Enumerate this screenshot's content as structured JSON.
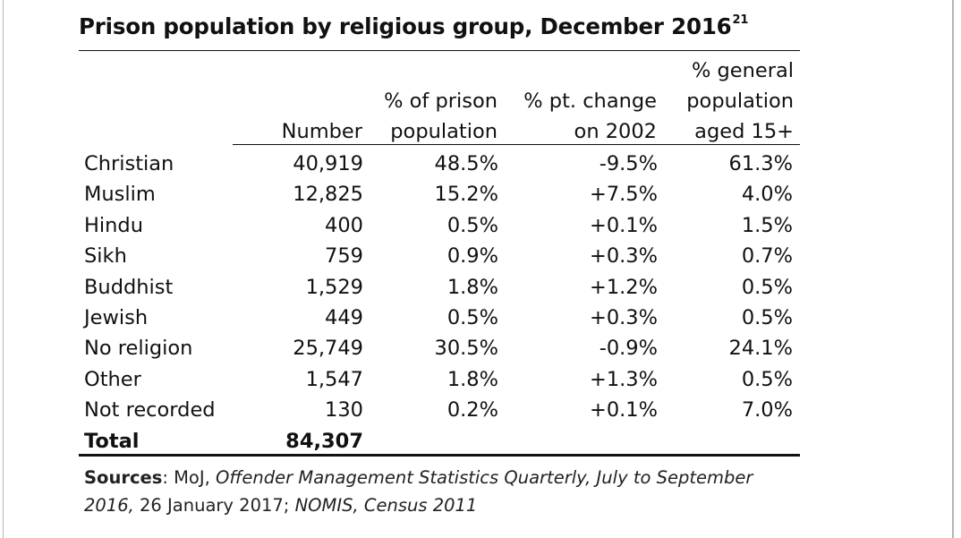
{
  "title": "Prison population by religious group, December 2016",
  "title_footnote": "21",
  "table": {
    "columns": [
      {
        "key": "number",
        "lines": [
          "Number"
        ]
      },
      {
        "key": "pct_prison",
        "lines": [
          "% of prison",
          "population"
        ]
      },
      {
        "key": "pt_change",
        "lines": [
          "% pt. change",
          "on 2002"
        ]
      },
      {
        "key": "pct_general",
        "lines": [
          "% general",
          "population",
          "aged 15+"
        ]
      }
    ],
    "rows": [
      {
        "label": "Christian",
        "number": "40,919",
        "pct_prison": "48.5%",
        "pt_change": "-9.5%",
        "pct_general": "61.3%"
      },
      {
        "label": "Muslim",
        "number": "12,825",
        "pct_prison": "15.2%",
        "pt_change": "+7.5%",
        "pct_general": "4.0%"
      },
      {
        "label": "Hindu",
        "number": "400",
        "pct_prison": "0.5%",
        "pt_change": "+0.1%",
        "pct_general": "1.5%"
      },
      {
        "label": "Sikh",
        "number": "759",
        "pct_prison": "0.9%",
        "pt_change": "+0.3%",
        "pct_general": "0.7%"
      },
      {
        "label": "Buddhist",
        "number": "1,529",
        "pct_prison": "1.8%",
        "pt_change": "+1.2%",
        "pct_general": "0.5%"
      },
      {
        "label": "Jewish",
        "number": "449",
        "pct_prison": "0.5%",
        "pt_change": "+0.3%",
        "pct_general": "0.5%"
      },
      {
        "label": "No religion",
        "number": "25,749",
        "pct_prison": "30.5%",
        "pt_change": "-0.9%",
        "pct_general": "24.1%"
      },
      {
        "label": "Other",
        "number": "1,547",
        "pct_prison": "1.8%",
        "pt_change": "+1.3%",
        "pct_general": "0.5%"
      },
      {
        "label": "Not recorded",
        "number": "130",
        "pct_prison": "0.2%",
        "pt_change": "+0.1%",
        "pct_general": "7.0%"
      }
    ],
    "total": {
      "label": "Total",
      "number": "84,307"
    }
  },
  "sources": {
    "label": "Sources",
    "part1": ": MoJ, ",
    "part2": "Offender Management Statistics Quarterly, July to September 2016,",
    "part3": " 26 January 2017; ",
    "part4": "NOMIS, Census 2011"
  }
}
